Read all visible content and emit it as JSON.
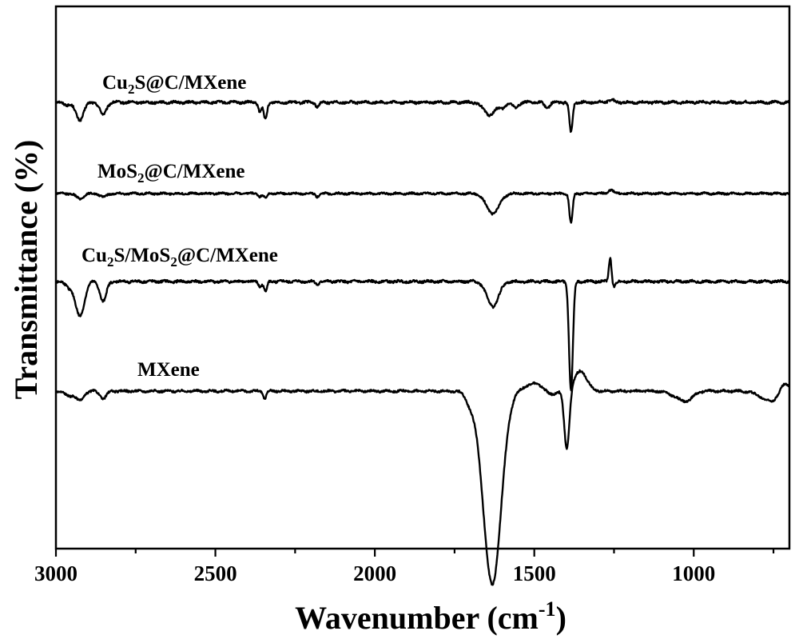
{
  "chart_data": {
    "type": "line",
    "xlabel": "Wavenumber (cm",
    "xlabel_sup": "-1",
    "xlabel_end": ")",
    "ylabel": "Transmittance (%)",
    "xlim": [
      3000,
      700
    ],
    "x_reversed": true,
    "y_ticks_shown": false,
    "grid": false,
    "line_color": "#000000",
    "xticks": [
      {
        "value": 3000,
        "label": "3000"
      },
      {
        "value": 2500,
        "label": "2500"
      },
      {
        "value": 2000,
        "label": "2000"
      },
      {
        "value": 1500,
        "label": "1500"
      },
      {
        "value": 1000,
        "label": "1000"
      }
    ],
    "series": [
      {
        "name_parts": [
          [
            "Cu",
            ""
          ],
          [
            "2",
            "sub"
          ],
          [
            "S@C/MXene",
            ""
          ]
        ],
        "baseline": 0,
        "features": [
          [
            2960,
            -0.5,
            12
          ],
          [
            2925,
            -3.5,
            12
          ],
          [
            2852,
            -2.5,
            10
          ],
          [
            2360,
            -2,
            5
          ],
          [
            2343,
            -3.5,
            5
          ],
          [
            2180,
            -1,
            5
          ],
          [
            1640,
            -2.5,
            18
          ],
          [
            1600,
            -1,
            10
          ],
          [
            1560,
            -1,
            10
          ],
          [
            1460,
            -1,
            8
          ],
          [
            1385,
            -6,
            5
          ],
          [
            1260,
            0.5,
            10
          ]
        ],
        "noise": 0.45
      },
      {
        "name_parts": [
          [
            "MoS",
            ""
          ],
          [
            "2",
            "sub"
          ],
          [
            "@C/MXene",
            ""
          ]
        ],
        "baseline": -7.1,
        "features": [
          [
            2925,
            -1,
            12
          ],
          [
            2852,
            -0.7,
            10
          ],
          [
            2360,
            -0.6,
            5
          ],
          [
            2343,
            -1,
            5
          ],
          [
            2180,
            -0.6,
            5
          ],
          [
            1630,
            -4,
            20
          ],
          [
            1385,
            -6,
            5
          ],
          [
            1260,
            0.8,
            8
          ]
        ],
        "noise": 0.35
      },
      {
        "name_parts": [
          [
            "Cu",
            ""
          ],
          [
            "2",
            "sub"
          ],
          [
            "S/MoS",
            ""
          ],
          [
            "2",
            "sub"
          ],
          [
            "@C/MXene",
            ""
          ]
        ],
        "baseline": -14.1,
        "features": [
          [
            2960,
            -1,
            12
          ],
          [
            2925,
            -7,
            14
          ],
          [
            2852,
            -4,
            10
          ],
          [
            2360,
            -1,
            5
          ],
          [
            2343,
            -2,
            5
          ],
          [
            2180,
            -0.6,
            5
          ],
          [
            1630,
            -5,
            18
          ],
          [
            1385,
            -22,
            6
          ],
          [
            1262,
            5,
            4
          ],
          [
            1250,
            -1,
            6
          ]
        ],
        "noise": 0.45
      },
      {
        "name_parts": [
          [
            "MXene",
            ""
          ]
        ],
        "baseline": -22.9,
        "features": [
          [
            2960,
            -1,
            12
          ],
          [
            2925,
            -2,
            12
          ],
          [
            2852,
            -1.5,
            10
          ],
          [
            2345,
            -1.5,
            5
          ],
          [
            1632,
            -39,
            28
          ],
          [
            1700,
            -2,
            15
          ],
          [
            1500,
            1.5,
            30
          ],
          [
            1450,
            -1,
            15
          ],
          [
            1398,
            -12,
            8
          ],
          [
            1355,
            4,
            20
          ],
          [
            1050,
            -1,
            25
          ],
          [
            1020,
            -1.5,
            20
          ],
          [
            760,
            -2,
            30
          ],
          [
            715,
            2,
            15
          ]
        ],
        "noise": 0.4
      }
    ]
  }
}
